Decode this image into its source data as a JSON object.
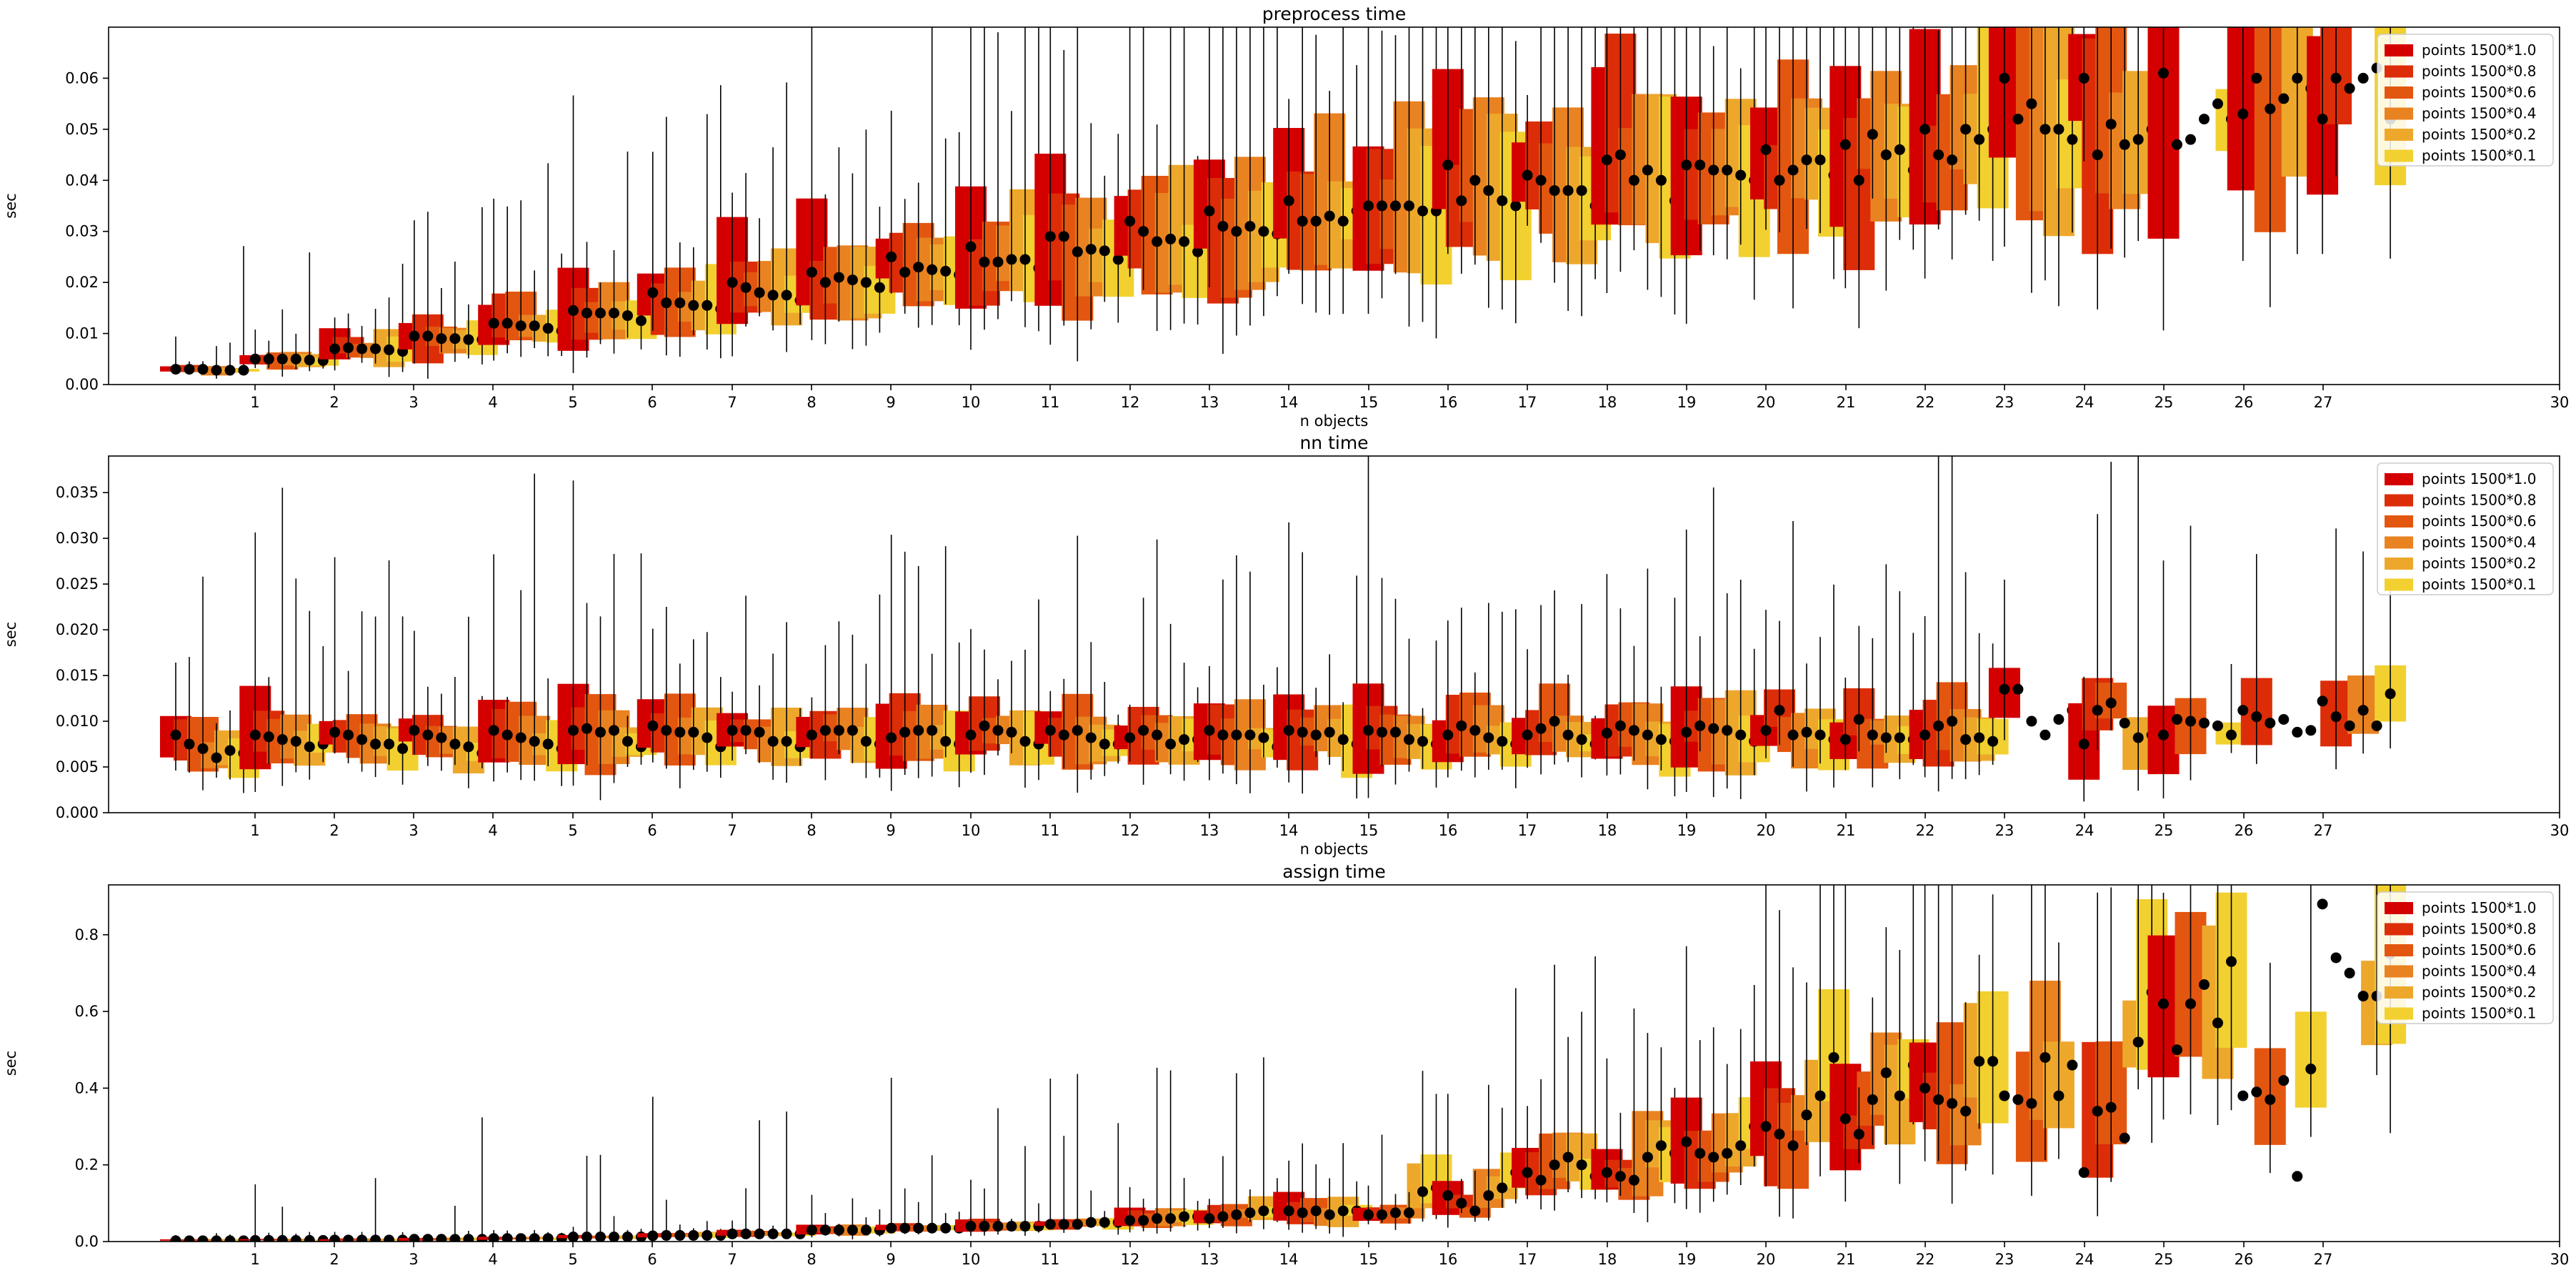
{
  "legend_colors": [
    "#d40000",
    "#dc2d08",
    "#e3560f",
    "#e98220",
    "#eda82c",
    "#f2d02f"
  ],
  "chart_data": [
    {
      "type": "box",
      "title": "preprocess time",
      "xlabel": "n objects",
      "ylabel": "sec",
      "xlim": [
        0,
        30
      ],
      "ylim": [
        0,
        0.07
      ],
      "xticks": [
        "1",
        "2",
        "3",
        "4",
        "5",
        "6",
        "7",
        "8",
        "9",
        "10",
        "11",
        "12",
        "13",
        "14",
        "15",
        "16",
        "17",
        "18",
        "19",
        "20",
        "21",
        "22",
        "23",
        "24",
        "25",
        "26",
        "27",
        "30"
      ],
      "yticks": [
        "0.00",
        "0.01",
        "0.02",
        "0.03",
        "0.04",
        "0.05",
        "0.06"
      ],
      "legend": [
        "points 1500*1.0",
        "points 1500*0.8",
        "points 1500*0.6",
        "points 1500*0.4",
        "points 1500*0.2",
        "points 1500*0.1"
      ],
      "legend_position": "top-right",
      "series": [
        {
          "name": "points 1500*1.0",
          "medians": [
            0.003,
            0.005,
            0.007,
            0.0095,
            0.012,
            0.0145,
            0.018,
            0.02,
            0.022,
            0.025,
            0.027,
            0.029,
            0.032,
            0.034,
            0.036,
            0.035,
            0.043,
            0.041,
            0.044,
            0.043,
            0.046,
            0.047,
            0.05,
            0.06,
            0.06,
            0.061,
            0.053,
            0.052
          ]
        },
        {
          "name": "points 1500*0.8",
          "medians": [
            0.003,
            0.005,
            0.0072,
            0.0095,
            0.012,
            0.014,
            0.016,
            0.019,
            0.02,
            0.022,
            0.024,
            0.029,
            0.03,
            0.031,
            0.032,
            0.035,
            0.036,
            0.04,
            0.045,
            0.043,
            0.04,
            0.04,
            0.045,
            0.052,
            0.045,
            0.047,
            0.06,
            0.06
          ]
        },
        {
          "name": "points 1500*0.6",
          "medians": [
            0.003,
            0.005,
            0.007,
            0.009,
            0.0115,
            0.014,
            0.016,
            0.018,
            0.021,
            0.023,
            0.024,
            0.026,
            0.028,
            0.03,
            0.032,
            0.035,
            0.04,
            0.038,
            0.04,
            0.042,
            0.042,
            0.049,
            0.044,
            0.055,
            0.051,
            0.048,
            0.054,
            0.058
          ]
        },
        {
          "name": "points 1500*0.4",
          "medians": [
            0.0028,
            0.005,
            0.007,
            0.009,
            0.0115,
            0.014,
            0.0155,
            0.0175,
            0.0205,
            0.0225,
            0.0245,
            0.0265,
            0.0285,
            0.031,
            0.033,
            0.035,
            0.038,
            0.038,
            0.042,
            0.042,
            0.044,
            0.045,
            0.05,
            0.05,
            0.047,
            0.052,
            0.056,
            0.06
          ]
        },
        {
          "name": "points 1500*0.2",
          "medians": [
            0.0028,
            0.0048,
            0.0068,
            0.0088,
            0.011,
            0.0135,
            0.0155,
            0.0175,
            0.02,
            0.0222,
            0.0245,
            0.0262,
            0.028,
            0.03,
            0.032,
            0.034,
            0.036,
            0.038,
            0.04,
            0.041,
            0.044,
            0.046,
            0.048,
            0.05,
            0.048,
            0.055,
            0.06,
            0.062
          ]
        },
        {
          "name": "points 1500*0.1",
          "medians": [
            0.0028,
            0.0047,
            0.0065,
            0.0088,
            0.0105,
            0.0125,
            0.0148,
            0.0165,
            0.019,
            0.0215,
            0.0228,
            0.0245,
            0.026,
            0.0295,
            0.034,
            0.034,
            0.035,
            0.035,
            0.036,
            0.04,
            0.041,
            0.042,
            0.05,
            0.048,
            0.05,
            0.052,
            0.058,
            0.052
          ]
        }
      ]
    },
    {
      "type": "box",
      "title": "nn time",
      "xlabel": "n objects",
      "ylabel": "sec",
      "xlim": [
        0,
        30
      ],
      "ylim": [
        0,
        0.039
      ],
      "xticks": [
        "1",
        "2",
        "3",
        "4",
        "5",
        "6",
        "7",
        "8",
        "9",
        "10",
        "11",
        "12",
        "13",
        "14",
        "15",
        "16",
        "17",
        "18",
        "19",
        "20",
        "21",
        "22",
        "23",
        "24",
        "25",
        "26",
        "27",
        "30"
      ],
      "yticks": [
        "0.000",
        "0.005",
        "0.010",
        "0.015",
        "0.020",
        "0.025",
        "0.030",
        "0.035"
      ],
      "legend": [
        "points 1500*1.0",
        "points 1500*0.8",
        "points 1500*0.6",
        "points 1500*0.4",
        "points 1500*0.2",
        "points 1500*0.1"
      ],
      "legend_position": "top-right",
      "series": [
        {
          "name": "points 1500*1.0",
          "medians": [
            0.0085,
            0.0085,
            0.0088,
            0.009,
            0.009,
            0.009,
            0.0095,
            0.009,
            0.0085,
            0.0082,
            0.0085,
            0.009,
            0.0082,
            0.009,
            0.009,
            0.009,
            0.0085,
            0.0085,
            0.0087,
            0.0088,
            0.009,
            0.008,
            0.0085,
            0.0135,
            0.0075,
            0.0085,
            0.0112,
            0.0122
          ]
        },
        {
          "name": "points 1500*0.8",
          "medians": [
            0.0075,
            0.0083,
            0.0085,
            0.0085,
            0.0085,
            0.0092,
            0.009,
            0.009,
            0.009,
            0.0088,
            0.0095,
            0.0085,
            0.009,
            0.0085,
            0.0088,
            0.0088,
            0.0095,
            0.0092,
            0.0095,
            0.0095,
            0.0112,
            0.0102,
            0.0095,
            0.0135,
            0.0112,
            0.0102,
            0.0105,
            0.0105
          ]
        },
        {
          "name": "points 1500*0.6",
          "medians": [
            0.007,
            0.008,
            0.008,
            0.0082,
            0.0082,
            0.0088,
            0.0088,
            0.0088,
            0.009,
            0.009,
            0.009,
            0.009,
            0.0085,
            0.0085,
            0.0085,
            0.0088,
            0.009,
            0.01,
            0.009,
            0.0092,
            0.0085,
            0.0085,
            0.01,
            0.01,
            0.012,
            0.01,
            0.0098,
            0.0095
          ]
        },
        {
          "name": "points 1500*0.4",
          "medians": [
            0.006,
            0.0078,
            0.0075,
            0.0075,
            0.0078,
            0.009,
            0.0088,
            0.0078,
            0.009,
            0.009,
            0.0088,
            0.0082,
            0.0075,
            0.0085,
            0.0088,
            0.008,
            0.0082,
            0.0085,
            0.0085,
            0.009,
            0.0088,
            0.0082,
            0.008,
            0.0085,
            0.0098,
            0.0098,
            0.0102,
            0.0112
          ]
        },
        {
          "name": "points 1500*0.2",
          "medians": [
            0.0068,
            0.0072,
            0.0075,
            0.0072,
            0.0075,
            0.0078,
            0.0082,
            0.0078,
            0.0078,
            0.0078,
            0.0078,
            0.0075,
            0.008,
            0.0082,
            0.008,
            0.0078,
            0.0078,
            0.008,
            0.008,
            0.0085,
            0.0085,
            0.0082,
            0.0082,
            0.0102,
            0.0082,
            0.0095,
            0.0088,
            0.0095
          ]
        },
        {
          "name": "points 1500*0.1",
          "medians": [
            0.0065,
            0.0075,
            0.007,
            0.0065,
            0.007,
            0.0072,
            0.0072,
            0.0072,
            0.0075,
            0.0075,
            0.0075,
            0.0075,
            0.008,
            0.0072,
            0.0075,
            0.0075,
            0.0075,
            0.0075,
            0.0078,
            0.0078,
            0.008,
            0.008,
            0.0078,
            0.0112,
            0.0085,
            0.0085,
            0.009,
            0.013
          ]
        }
      ]
    },
    {
      "type": "box",
      "title": "assign time",
      "xlabel": "",
      "ylabel": "sec",
      "xlim": [
        0,
        30
      ],
      "ylim": [
        0,
        0.93
      ],
      "xticks": [
        "1",
        "2",
        "3",
        "4",
        "5",
        "6",
        "7",
        "8",
        "9",
        "10",
        "11",
        "12",
        "13",
        "14",
        "15",
        "16",
        "17",
        "18",
        "19",
        "20",
        "21",
        "22",
        "23",
        "24",
        "25",
        "26",
        "27",
        "30"
      ],
      "yticks": [
        "0.0",
        "0.2",
        "0.4",
        "0.6",
        "0.8"
      ],
      "legend": [
        "points 1500*1.0",
        "points 1500*0.8",
        "points 1500*0.6",
        "points 1500*0.4",
        "points 1500*0.2",
        "points 1500*0.1"
      ],
      "legend_position": "top-right",
      "series": [
        {
          "name": "points 1500*1.0",
          "medians": [
            0.002,
            0.003,
            0.004,
            0.006,
            0.008,
            0.012,
            0.015,
            0.02,
            0.03,
            0.035,
            0.04,
            0.045,
            0.055,
            0.06,
            0.08,
            0.07,
            0.12,
            0.18,
            0.18,
            0.26,
            0.3,
            0.32,
            0.4,
            0.38,
            0.18,
            0.62,
            0.38,
            0.88
          ]
        },
        {
          "name": "points 1500*0.8",
          "medians": [
            0.002,
            0.003,
            0.004,
            0.006,
            0.008,
            0.012,
            0.016,
            0.02,
            0.03,
            0.035,
            0.04,
            0.045,
            0.055,
            0.065,
            0.075,
            0.07,
            0.1,
            0.16,
            0.17,
            0.23,
            0.28,
            0.28,
            0.37,
            0.37,
            0.34,
            0.5,
            0.39,
            0.74
          ]
        },
        {
          "name": "points 1500*0.6",
          "medians": [
            0.002,
            0.003,
            0.004,
            0.006,
            0.008,
            0.012,
            0.016,
            0.02,
            0.03,
            0.035,
            0.04,
            0.045,
            0.06,
            0.07,
            0.08,
            0.075,
            0.08,
            0.2,
            0.16,
            0.22,
            0.25,
            0.37,
            0.36,
            0.36,
            0.35,
            0.62,
            0.37,
            0.7
          ]
        },
        {
          "name": "points 1500*0.4",
          "medians": [
            0.002,
            0.003,
            0.004,
            0.006,
            0.008,
            0.012,
            0.016,
            0.02,
            0.03,
            0.035,
            0.04,
            0.05,
            0.06,
            0.075,
            0.07,
            0.075,
            0.12,
            0.22,
            0.22,
            0.23,
            0.33,
            0.44,
            0.34,
            0.48,
            0.27,
            0.67,
            0.42,
            0.64
          ]
        },
        {
          "name": "points 1500*0.2",
          "medians": [
            0.002,
            0.003,
            0.004,
            0.006,
            0.008,
            0.012,
            0.016,
            0.02,
            0.03,
            0.035,
            0.04,
            0.05,
            0.065,
            0.08,
            0.08,
            0.13,
            0.14,
            0.2,
            0.25,
            0.25,
            0.38,
            0.38,
            0.47,
            0.38,
            0.52,
            0.57,
            0.17,
            0.64
          ]
        },
        {
          "name": "points 1500*0.1",
          "medians": [
            0.002,
            0.003,
            0.004,
            0.006,
            0.008,
            0.012,
            0.016,
            0.02,
            0.03,
            0.035,
            0.04,
            0.05,
            0.065,
            0.08,
            0.08,
            0.14,
            0.18,
            0.17,
            0.23,
            0.3,
            0.48,
            0.46,
            0.47,
            0.46,
            0.65,
            0.73,
            0.45,
            0.75
          ]
        }
      ]
    }
  ]
}
